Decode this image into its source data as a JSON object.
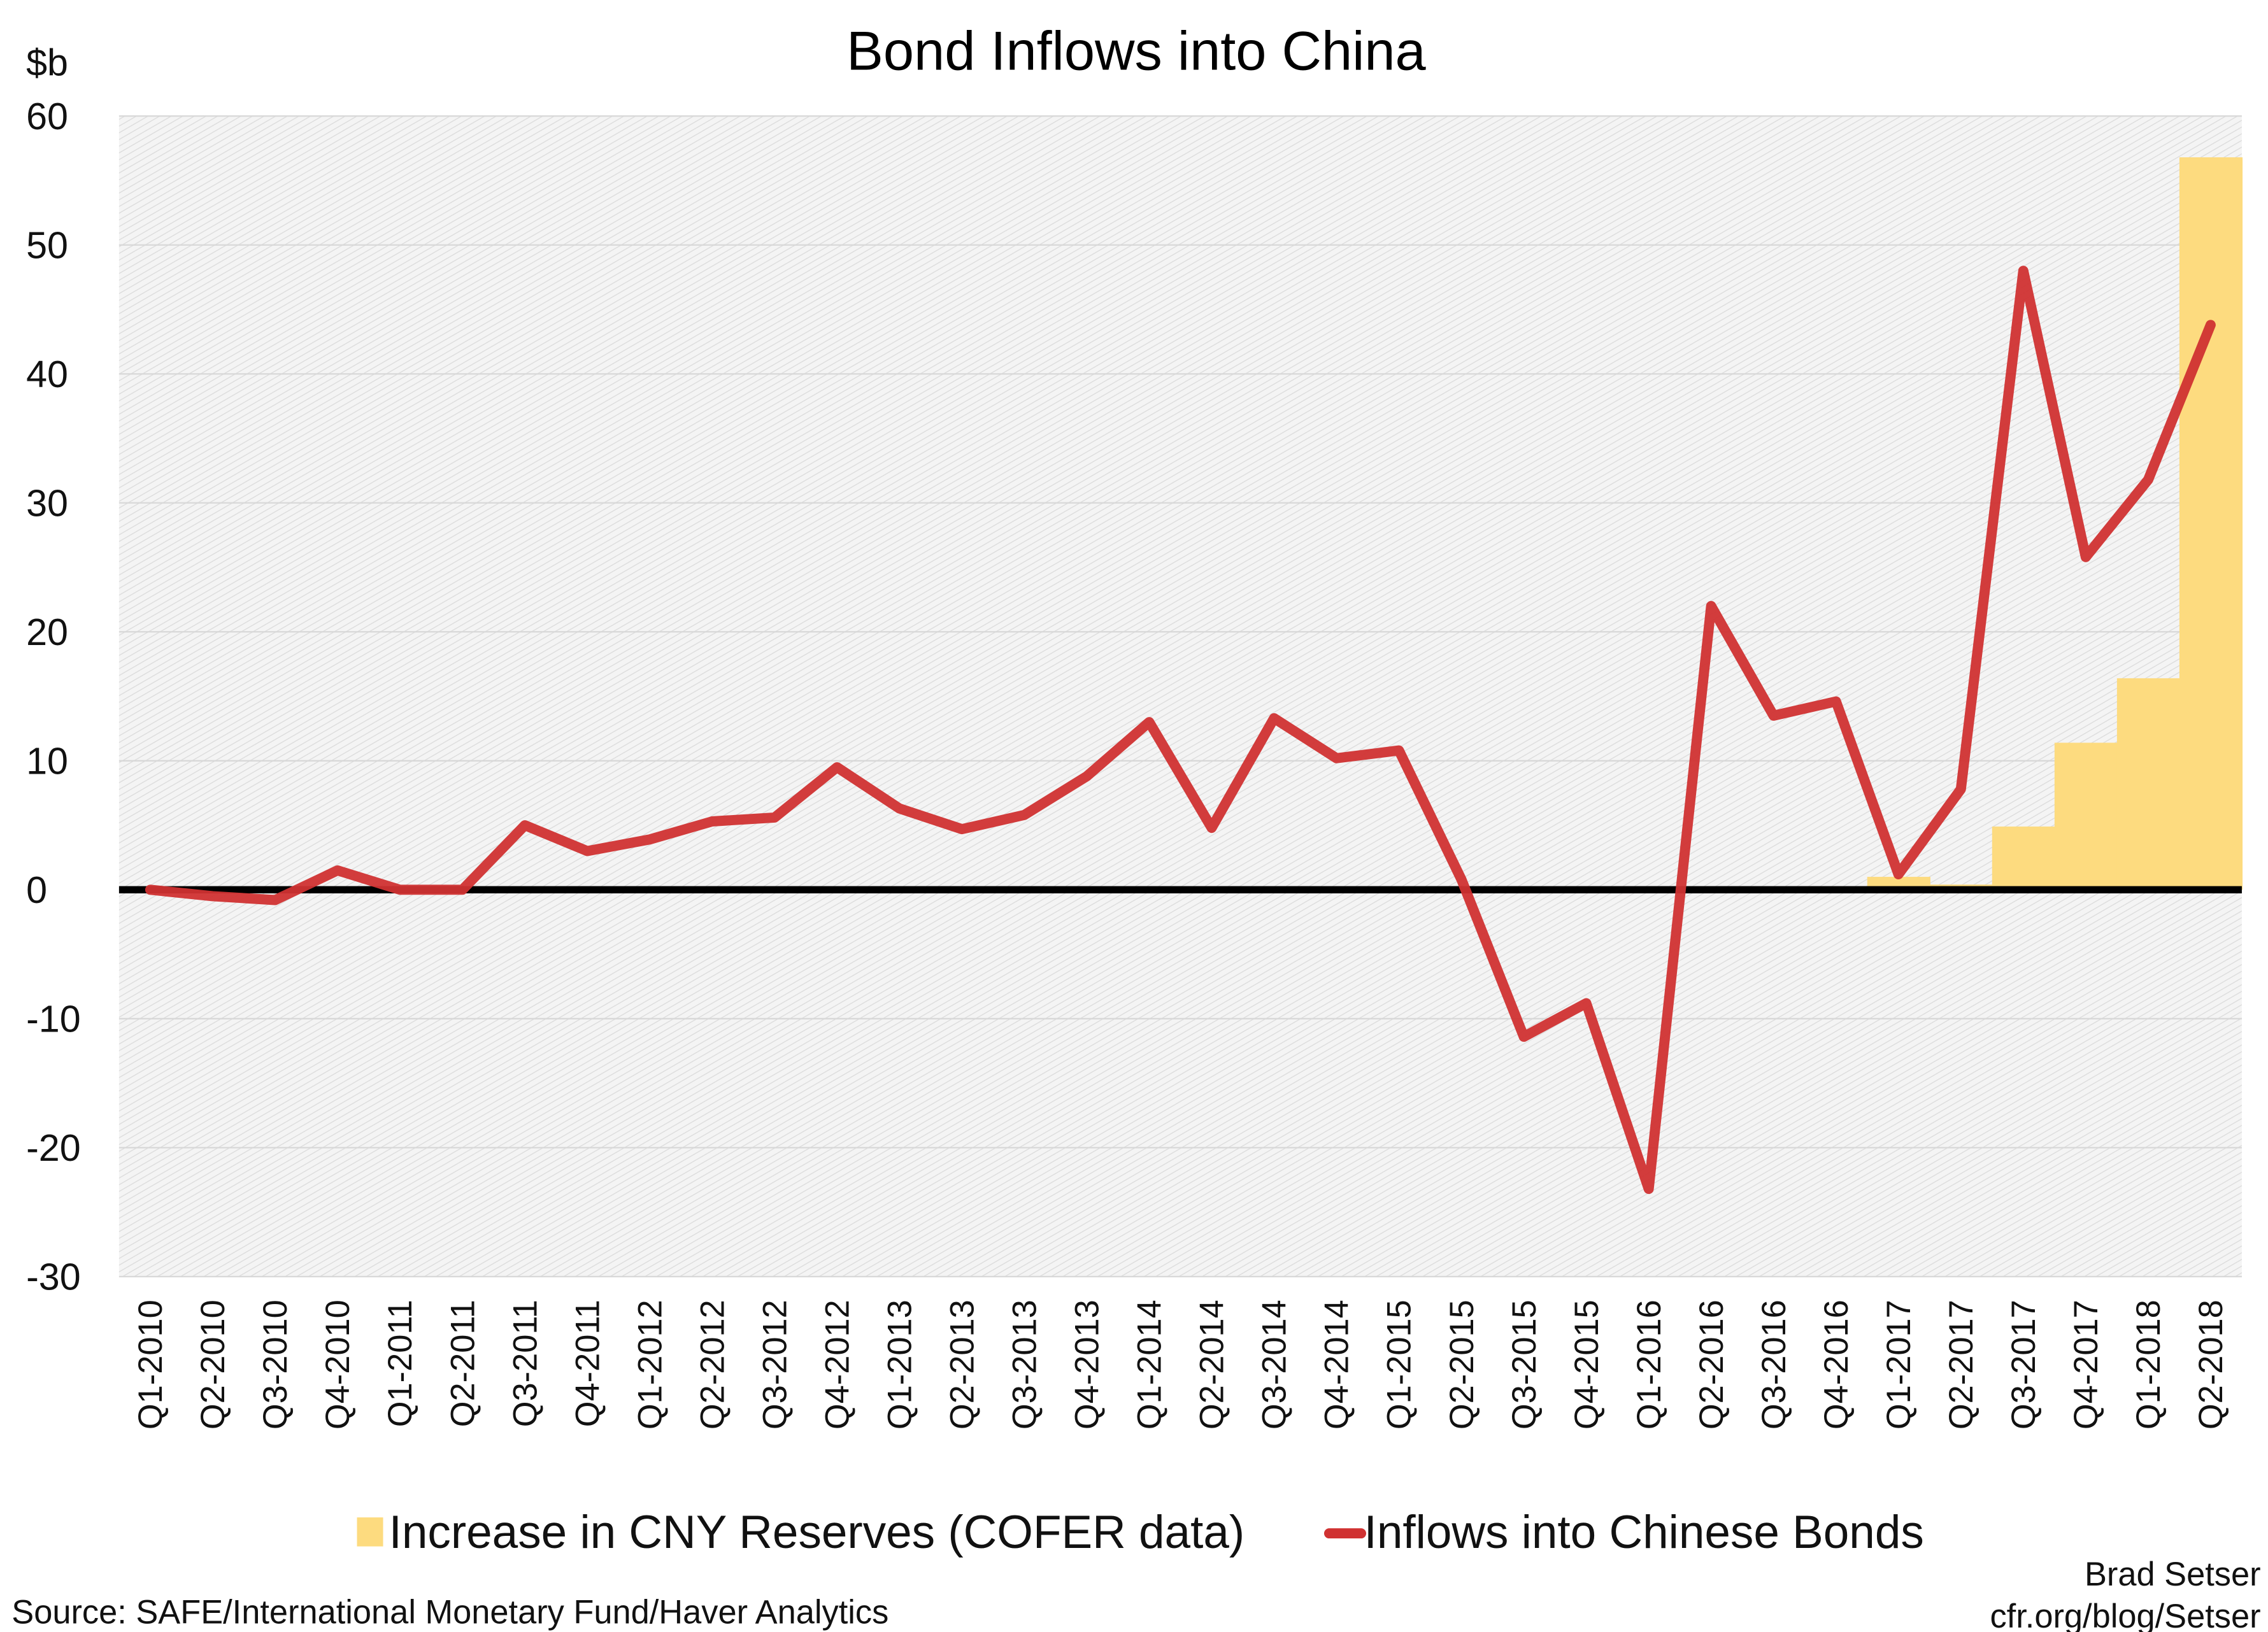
{
  "chart_data": {
    "type": "bar+line",
    "title": "Bond Inflows into China",
    "ylabel": "$b",
    "ylim": [
      -30,
      60
    ],
    "yticks": [
      60,
      50,
      40,
      30,
      20,
      10,
      0,
      -10,
      -20,
      -30
    ],
    "grid": true,
    "legend_placement": "bottom",
    "categories": [
      "Q1-2010",
      "Q2-2010",
      "Q3-2010",
      "Q4-2010",
      "Q1-2011",
      "Q2-2011",
      "Q3-2011",
      "Q4-2011",
      "Q1-2012",
      "Q2-2012",
      "Q3-2012",
      "Q4-2012",
      "Q1-2013",
      "Q2-2013",
      "Q3-2013",
      "Q4-2013",
      "Q1-2014",
      "Q2-2014",
      "Q3-2014",
      "Q4-2014",
      "Q1-2015",
      "Q2-2015",
      "Q3-2015",
      "Q4-2015",
      "Q1-2016",
      "Q2-2016",
      "Q3-2016",
      "Q4-2016",
      "Q1-2017",
      "Q2-2017",
      "Q3-2017",
      "Q4-2017",
      "Q1-2018",
      "Q2-2018"
    ],
    "series": [
      {
        "name": "Increase in CNY Reserves (COFER data)",
        "type": "bar",
        "color": "#fddb7f",
        "values": [
          null,
          null,
          null,
          null,
          null,
          null,
          null,
          null,
          null,
          null,
          null,
          null,
          null,
          null,
          null,
          null,
          null,
          null,
          null,
          null,
          null,
          null,
          null,
          null,
          null,
          null,
          null,
          null,
          1.0,
          0.4,
          4.9,
          11.4,
          16.4,
          56.8
        ]
      },
      {
        "name": "Inflows into Chinese Bonds",
        "type": "line",
        "color": "#d03232",
        "values": [
          0,
          -0.5,
          -0.8,
          1.5,
          0,
          0,
          5,
          3,
          3.9,
          5.3,
          5.6,
          9.5,
          6.3,
          4.7,
          5.8,
          8.8,
          13,
          4.8,
          13.3,
          10.2,
          10.8,
          0.8,
          -11.4,
          -8.8,
          -23.2,
          22,
          13.5,
          14.6,
          1.2,
          7.8,
          48,
          25.8,
          31.8,
          43.8
        ]
      }
    ]
  },
  "footer": {
    "source": "Source: SAFE/International Monetary Fund/Haver Analytics",
    "author": "Brad Setser",
    "site": "cfr.org/blog/Setser"
  }
}
